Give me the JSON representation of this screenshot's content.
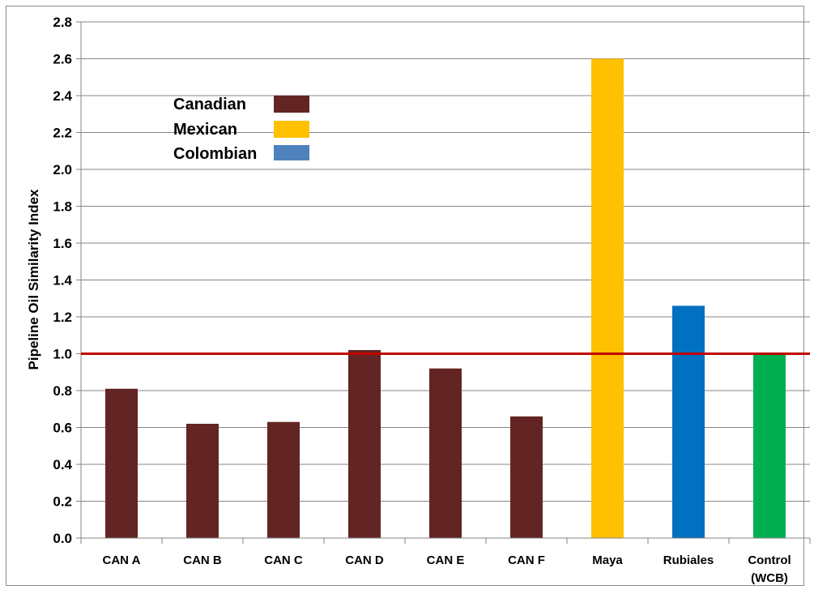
{
  "chart_data": {
    "type": "bar",
    "title": "",
    "xlabel": "",
    "ylabel": "Pipeline Oil Similarity Index",
    "ylim": [
      0,
      2.8
    ],
    "yticks": [
      "0.0",
      "0.2",
      "0.4",
      "0.6",
      "0.8",
      "1.0",
      "1.2",
      "1.4",
      "1.6",
      "1.8",
      "2.0",
      "2.2",
      "2.4",
      "2.6",
      "2.8"
    ],
    "grid": true,
    "categories": [
      "CAN A",
      "CAN B",
      "CAN C",
      "CAN D",
      "CAN E",
      "CAN F",
      "Maya",
      "Rubiales",
      "Control (WCB)"
    ],
    "category_lines": [
      [
        "CAN A"
      ],
      [
        "CAN B"
      ],
      [
        "CAN C"
      ],
      [
        "CAN D"
      ],
      [
        "CAN E"
      ],
      [
        "CAN F"
      ],
      [
        "Maya"
      ],
      [
        "Rubiales"
      ],
      [
        "Control",
        "(WCB)"
      ]
    ],
    "values": [
      0.81,
      0.62,
      0.63,
      1.02,
      0.92,
      0.66,
      2.6,
      1.26,
      1.0
    ],
    "bar_colors": [
      "#632523",
      "#632523",
      "#632523",
      "#632523",
      "#632523",
      "#632523",
      "#FFC000",
      "#0070C0",
      "#00B050"
    ],
    "reference_line": {
      "value": 1.0,
      "color": "#C00000"
    },
    "legend": {
      "placement": "upper-left",
      "entries": [
        {
          "label": "Canadian",
          "color": "#632523"
        },
        {
          "label": "Mexican",
          "color": "#FFC000"
        },
        {
          "label": "Colombian",
          "color": "#4F81BD"
        }
      ]
    },
    "gridline_color": "#868686",
    "axis_color": "#868686"
  }
}
